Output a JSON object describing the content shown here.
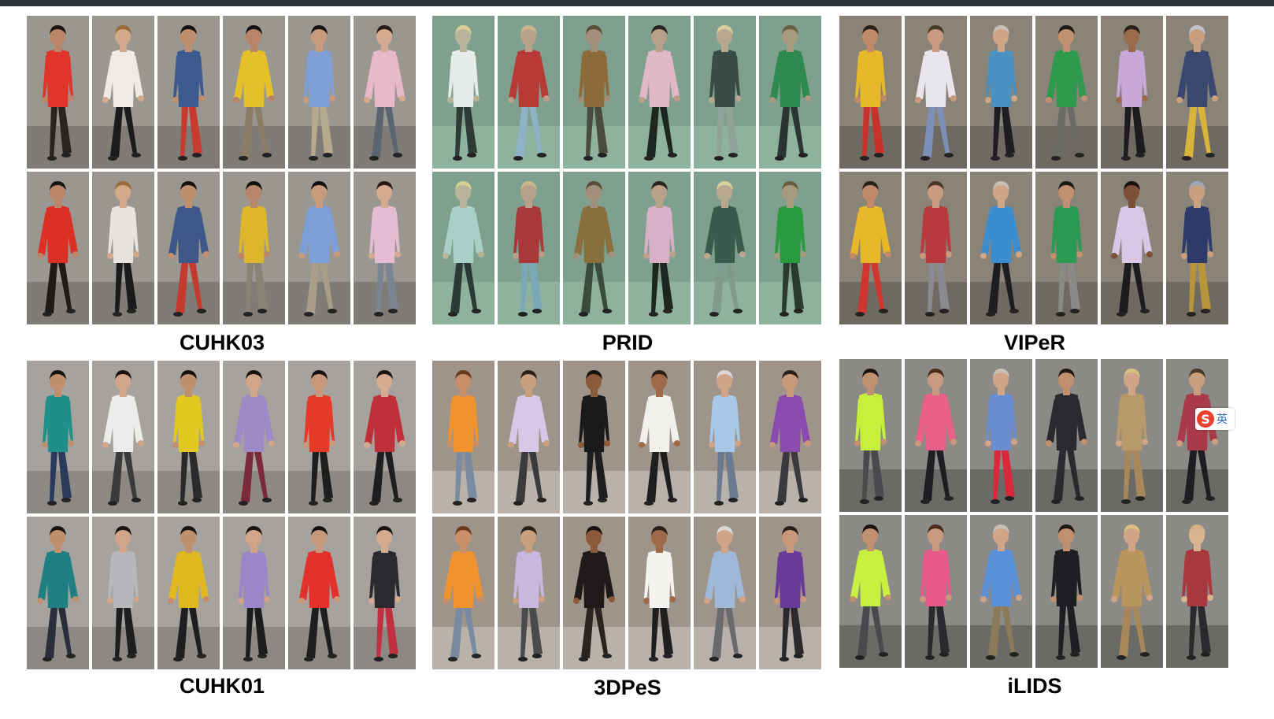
{
  "datasets": [
    {
      "name": "CUHK03",
      "bg": "#9a9690",
      "ground": "#7f7b76",
      "rows": [
        [
          {
            "shirt": "#e0352b",
            "pants": "#2a2420",
            "skin": "#b9866a",
            "hair": "#1a1612"
          },
          {
            "shirt": "#efeae6",
            "pants": "#1b1b1d",
            "skin": "#d2a98a",
            "hair": "#9a6a3a"
          },
          {
            "shirt": "#3c5a8f",
            "pants": "#c93a2e",
            "skin": "#c0906e",
            "hair": "#17120f"
          },
          {
            "shirt": "#e4c029",
            "pants": "#8a7d66",
            "skin": "#b8856a",
            "hair": "#15110e"
          },
          {
            "shirt": "#7fa0d6",
            "pants": "#b7aa8c",
            "skin": "#c89b7c",
            "hair": "#15110e"
          },
          {
            "shirt": "#e8b9c9",
            "pants": "#5b6570",
            "skin": "#d4ab91",
            "hair": "#2a1c17"
          }
        ],
        [
          {
            "shirt": "#dc3025",
            "pants": "#1d1a18",
            "skin": "#b9866a",
            "hair": "#1a1612"
          },
          {
            "shirt": "#e7e3df",
            "pants": "#1a1a1c",
            "skin": "#d2a98a",
            "hair": "#9a6a3a"
          },
          {
            "shirt": "#3d5888",
            "pants": "#c53a2e",
            "skin": "#c0906e",
            "hair": "#17120f"
          },
          {
            "shirt": "#ddb62b",
            "pants": "#8a8274",
            "skin": "#b8856a",
            "hair": "#15110e"
          },
          {
            "shirt": "#7d9fd8",
            "pants": "#a89e88",
            "skin": "#c89b7c",
            "hair": "#15110e"
          },
          {
            "shirt": "#e5bdd3",
            "pants": "#7a8591",
            "skin": "#d4ab91",
            "hair": "#2a1c17"
          }
        ]
      ]
    },
    {
      "name": "PRID",
      "bg": "#7fa08f",
      "ground": "#8fb29f",
      "rows": [
        [
          {
            "shirt": "#e6ecea",
            "pants": "#2e3a36",
            "skin": "#b8b49a",
            "hair": "#d9cf94"
          },
          {
            "shirt": "#b83a36",
            "pants": "#8fb3c6",
            "skin": "#b8a08a",
            "hair": "#c8b88e"
          },
          {
            "shirt": "#8d6a3a",
            "pants": "#4a4a3e",
            "skin": "#a0907a",
            "hair": "#5a4e3a"
          },
          {
            "shirt": "#e0b8c8",
            "pants": "#1e2622",
            "skin": "#b8a08a",
            "hair": "#2a2420"
          },
          {
            "shirt": "#3a4a44",
            "pants": "#8fa39a",
            "skin": "#b8a890",
            "hair": "#d8cf9a"
          },
          {
            "shirt": "#2e8a4e",
            "pants": "#2a3430",
            "skin": "#a89a80",
            "hair": "#6a5e40"
          }
        ],
        [
          {
            "shirt": "#a8d0c6",
            "pants": "#2b3a34",
            "skin": "#b8b49a",
            "hair": "#d9cf94"
          },
          {
            "shirt": "#a8383a",
            "pants": "#7aa8b6",
            "skin": "#b8a08a",
            "hair": "#c8b88e"
          },
          {
            "shirt": "#87703e",
            "pants": "#3a4a3c",
            "skin": "#a0907a",
            "hair": "#5a4e3a"
          },
          {
            "shirt": "#d8b0c8",
            "pants": "#1e2622",
            "skin": "#b8a08a",
            "hair": "#2a2420"
          },
          {
            "shirt": "#3a5a4e",
            "pants": "#7f9a8e",
            "skin": "#b8a890",
            "hair": "#d8cf9a"
          },
          {
            "shirt": "#2a9a3e",
            "pants": "#2a3a30",
            "skin": "#a89a80",
            "hair": "#6a5e40"
          }
        ]
      ]
    },
    {
      "name": "VIPeR",
      "bg": "#8a8478",
      "ground": "#6e6a62",
      "rows": [
        [
          {
            "shirt": "#e6b82a",
            "pants": "#c8322a",
            "skin": "#c08a6a",
            "hair": "#2a2018"
          },
          {
            "shirt": "#e8e6ec",
            "pants": "#7c8fb6",
            "skin": "#c89a80",
            "hair": "#4a3a2a"
          },
          {
            "shirt": "#4a90c0",
            "pants": "#1e1e22",
            "skin": "#d0a486",
            "hair": "#c8c0b4"
          },
          {
            "shirt": "#2f9a4e",
            "pants": "#6a6a66",
            "skin": "#c09070",
            "hair": "#1e1812"
          },
          {
            "shirt": "#c8a8d8",
            "pants": "#1c1c1e",
            "skin": "#9a6a4a",
            "hair": "#2a1e16"
          },
          {
            "shirt": "#3a4870",
            "pants": "#d8b43a",
            "skin": "#c8a080",
            "hair": "#c0c4d0"
          }
        ],
        [
          {
            "shirt": "#e6b82a",
            "pants": "#d0362e",
            "skin": "#c08a6a",
            "hair": "#2a2018"
          },
          {
            "shirt": "#b83a3e",
            "pants": "#8a8a92",
            "skin": "#c89a80",
            "hair": "#4a3a2a"
          },
          {
            "shirt": "#3a8ed0",
            "pants": "#1e1e22",
            "skin": "#d0a486",
            "hair": "#c8c0b4"
          },
          {
            "shirt": "#2a9a52",
            "pants": "#8a8a88",
            "skin": "#c09070",
            "hair": "#1e1812"
          },
          {
            "shirt": "#d8c8e6",
            "pants": "#1c1c1e",
            "skin": "#7a5038",
            "hair": "#1a1410"
          },
          {
            "shirt": "#2e3a6a",
            "pants": "#b8943a",
            "skin": "#c8a080",
            "hair": "#a0a8b8"
          }
        ]
      ]
    },
    {
      "name": "CUHK01",
      "bg": "#a6a39e",
      "ground": "#8c8984",
      "rows": [
        [
          {
            "shirt": "#1f8f8a",
            "pants": "#2a3a5a",
            "skin": "#c0906e",
            "hair": "#17120f"
          },
          {
            "shirt": "#ececea",
            "pants": "#3a3a3c",
            "skin": "#d0a58a",
            "hair": "#1a1410"
          },
          {
            "shirt": "#e2c820",
            "pants": "#2a2a2c",
            "skin": "#c0906e",
            "hair": "#15110e"
          },
          {
            "shirt": "#9f8ac8",
            "pants": "#7a2a3a",
            "skin": "#d0a58a",
            "hair": "#1a1410"
          },
          {
            "shirt": "#e63a28",
            "pants": "#1e1e20",
            "skin": "#c8987a",
            "hair": "#15110e"
          },
          {
            "shirt": "#c0303a",
            "pants": "#1e1e22",
            "skin": "#d4ab91",
            "hair": "#1a1410"
          }
        ],
        [
          {
            "shirt": "#1f7f82",
            "pants": "#2a2e3a",
            "skin": "#c0906e",
            "hair": "#17120f"
          },
          {
            "shirt": "#b8b8bc",
            "pants": "#1e1e20",
            "skin": "#d0a58a",
            "hair": "#1a1410"
          },
          {
            "shirt": "#e0b820",
            "pants": "#1e1e20",
            "skin": "#c0906e",
            "hair": "#15110e"
          },
          {
            "shirt": "#9a86c8",
            "pants": "#1c1c1e",
            "skin": "#d0a58a",
            "hair": "#1a1410"
          },
          {
            "shirt": "#e2302a",
            "pants": "#1e1e20",
            "skin": "#c8987a",
            "hair": "#15110e"
          },
          {
            "shirt": "#2a2a2e",
            "pants": "#c03040",
            "skin": "#d4ab91",
            "hair": "#1a1410"
          }
        ]
      ]
    },
    {
      "name": "3DPeS",
      "bg": "#9e948a",
      "ground": "#b8b2aa",
      "rows": [
        [
          {
            "shirt": "#f0922e",
            "pants": "#7a8aa0",
            "skin": "#c8906a",
            "hair": "#6a3a1e"
          },
          {
            "shirt": "#d8c8e8",
            "pants": "#3a3a3c",
            "skin": "#c8a080",
            "hair": "#2a2018"
          },
          {
            "shirt": "#1a1a1c",
            "pants": "#1e1e20",
            "skin": "#8a5a3a",
            "hair": "#1a1410"
          },
          {
            "shirt": "#f2f0ec",
            "pants": "#1e1e20",
            "skin": "#a06a4a",
            "hair": "#2a1e16"
          },
          {
            "shirt": "#a8c8e8",
            "pants": "#6a7a90",
            "skin": "#d0a486",
            "hair": "#d8d8d8"
          },
          {
            "shirt": "#8a4ab0",
            "pants": "#3a3a3e",
            "skin": "#c8987a",
            "hair": "#2a2018"
          }
        ],
        [
          {
            "shirt": "#f0922e",
            "pants": "#7a8aa0",
            "skin": "#c8906a",
            "hair": "#6a3a1e"
          },
          {
            "shirt": "#c8b8e0",
            "pants": "#4a4a4c",
            "skin": "#c8a080",
            "hair": "#2a2018"
          },
          {
            "shirt": "#1e1a1a",
            "pants": "#2a2420",
            "skin": "#8a5a3a",
            "hair": "#1a1410"
          },
          {
            "shirt": "#f6f4f0",
            "pants": "#1e1e20",
            "skin": "#a06a4a",
            "hair": "#2a1e16"
          },
          {
            "shirt": "#a0b8d8",
            "pants": "#6a6a6e",
            "skin": "#d0a486",
            "hair": "#d8d8d8"
          },
          {
            "shirt": "#6a3a9a",
            "pants": "#2a2a2e",
            "skin": "#c8987a",
            "hair": "#2a2018"
          }
        ]
      ]
    },
    {
      "name": "iLIDS",
      "bg": "#8c8a86",
      "ground": "#6a6a66",
      "rows": [
        [
          {
            "shirt": "#c8f03a",
            "pants": "#4a4a4e",
            "skin": "#c09070",
            "hair": "#1a1410"
          },
          {
            "shirt": "#e8608a",
            "pants": "#1e1e22",
            "skin": "#c89a80",
            "hair": "#4a2a1a"
          },
          {
            "shirt": "#6a8ed0",
            "pants": "#d8283a",
            "skin": "#d0a486",
            "hair": "#c8c0b4"
          },
          {
            "shirt": "#2a2a2e",
            "pants": "#2a2a2e",
            "skin": "#c09070",
            "hair": "#1e1812"
          },
          {
            "shirt": "#b89a6a",
            "pants": "#a8885a",
            "skin": "#d0a486",
            "hair": "#d8c080"
          },
          {
            "shirt": "#a83a4a",
            "pants": "#1e1e22",
            "skin": "#c8a080",
            "hair": "#4a3a2a"
          }
        ],
        [
          {
            "shirt": "#c8f040",
            "pants": "#4a4a4e",
            "skin": "#c09070",
            "hair": "#1a1410"
          },
          {
            "shirt": "#e85a8a",
            "pants": "#2a2a2e",
            "skin": "#c89a80",
            "hair": "#4a2a1a"
          },
          {
            "shirt": "#5a90d8",
            "pants": "#8a7a5a",
            "skin": "#d0a486",
            "hair": "#c8c0b4"
          },
          {
            "shirt": "#1e1e22",
            "pants": "#1e1e22",
            "skin": "#c09070",
            "hair": "#1e1812"
          },
          {
            "shirt": "#b8965e",
            "pants": "#a8885a",
            "skin": "#d0a486",
            "hair": "#d8c080"
          },
          {
            "shirt": "#a8383e",
            "pants": "#2a2a2e",
            "skin": "#d8b490",
            "hair": "#d0b080"
          }
        ]
      ]
    }
  ],
  "ime_badge": {
    "logo": "S",
    "text": "英"
  }
}
